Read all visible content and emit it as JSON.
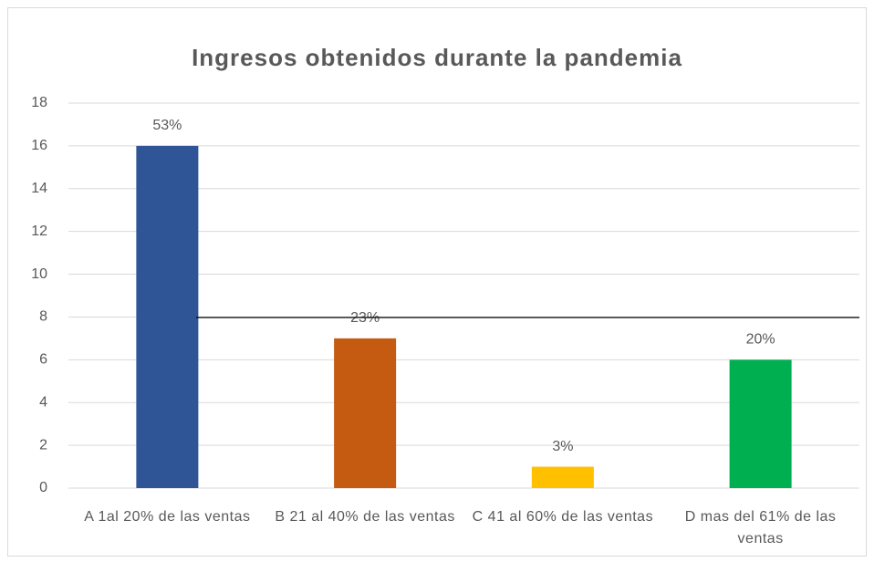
{
  "chart_data": {
    "type": "bar",
    "title": "Ingresos obtenidos durante la pandemia",
    "categories": [
      "A 1al 20% de las ventas",
      "B 21 al 40% de las ventas",
      "C 41 al 60% de las ventas",
      "D mas del 61% de las ventas"
    ],
    "values": [
      16,
      7,
      1,
      6
    ],
    "annotations": [
      "53%",
      "23%",
      "3%",
      "20%"
    ],
    "colors": [
      "#2f5597",
      "#c55a11",
      "#ffc000",
      "#00b050"
    ],
    "ylim": [
      0,
      18
    ],
    "yticks": [
      0,
      2,
      4,
      6,
      8,
      10,
      12,
      14,
      16,
      18
    ],
    "grid": true
  }
}
